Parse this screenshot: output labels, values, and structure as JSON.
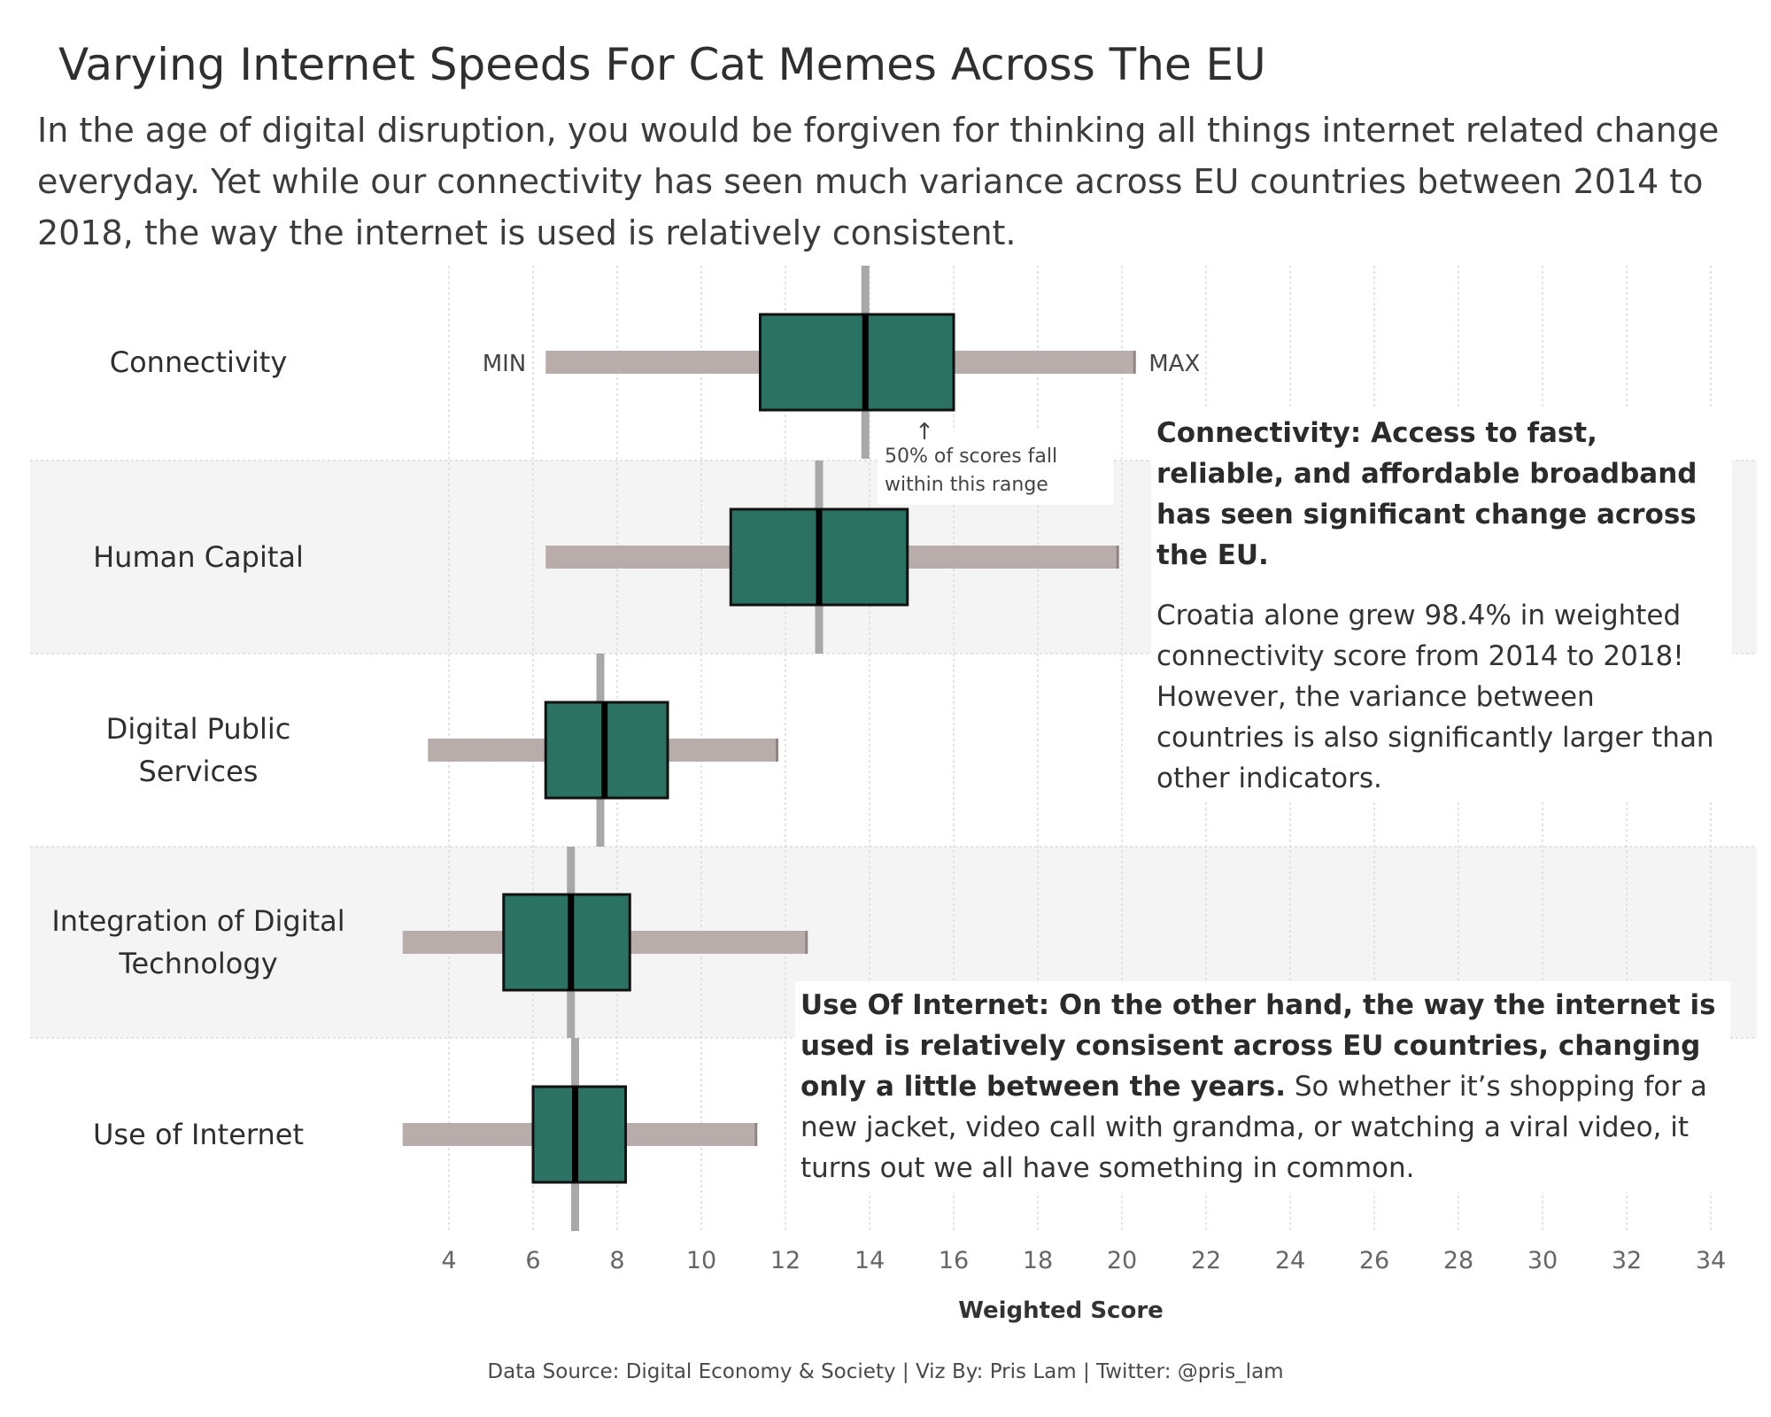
{
  "title": "Varying Internet Speeds For Cat Memes Across The EU",
  "subtitle": "In the age of digital disruption, you would be forgiven for thinking all things internet related change everyday. Yet while our connectivity has seen much variance across EU countries between 2014 to 2018, the way the internet is used is relatively consistent.",
  "colors": {
    "box_fill": "#2b7263",
    "whisker": "#b8adaa",
    "median_line": "#000000",
    "reference_line": "#a8a8a8",
    "band": "#f4f4f4",
    "grid": "#dcdcdc"
  },
  "chart_data": {
    "type": "boxplot",
    "orientation": "horizontal",
    "categories": [
      "Connectivity",
      "Human Capital",
      "Digital Public Services",
      "Integration of Digital Technology",
      "Use of Internet"
    ],
    "category_labels": [
      [
        "Connectivity"
      ],
      [
        "Human Capital"
      ],
      [
        "Digital Public",
        "Services"
      ],
      [
        "Integration of Digital",
        "Technology"
      ],
      [
        "Use of Internet"
      ]
    ],
    "boxes": [
      {
        "category": "Connectivity",
        "min": 6.3,
        "q1": 11.4,
        "median": 13.9,
        "q3": 16.0,
        "max": 20.3,
        "reference": 13.9
      },
      {
        "category": "Human Capital",
        "min": 6.3,
        "q1": 10.7,
        "median": 12.8,
        "q3": 14.9,
        "max": 19.9,
        "reference": 12.8
      },
      {
        "category": "Digital Public Services",
        "min": 3.5,
        "q1": 6.3,
        "median": 7.7,
        "q3": 9.2,
        "max": 11.8,
        "reference": 7.6
      },
      {
        "category": "Integration of Digital Technology",
        "min": 2.9,
        "q1": 5.3,
        "median": 6.9,
        "q3": 8.3,
        "max": 12.5,
        "reference": 6.9
      },
      {
        "category": "Use of Internet",
        "min": 2.9,
        "q1": 6.0,
        "median": 7.0,
        "q3": 8.2,
        "max": 11.3,
        "reference": 7.0
      }
    ],
    "xlim": [
      3,
      34.5
    ],
    "xticks": [
      4,
      6,
      8,
      10,
      12,
      14,
      16,
      18,
      20,
      22,
      24,
      26,
      28,
      30,
      32,
      34
    ],
    "xlabel": "Weighted Score",
    "ylabel": "",
    "grid": true,
    "annotations": {
      "min_label": "MIN",
      "max_label": "MAX",
      "range_note": [
        "50% of scores fall",
        "within this range"
      ],
      "range_arrow": "↑"
    }
  },
  "callouts": {
    "connectivity_bold": "Connectivity: Access to fast, reliable, and affordable broadband has seen significant change across the EU.",
    "connectivity_body": "Croatia alone grew 98.4% in weighted connectivity score from 2014 to 2018! However, the variance between countries is also significantly larger than other indicators.",
    "internet_bold": "Use Of Internet: On the other hand, the way the internet is used is relatively consisent across EU countries, changing only a little between the years.",
    "internet_body": " So whether it’s shopping for a new jacket, video call with grandma, or watching a viral video, it turns out we all have something in common."
  },
  "footer": "Data Source: Digital Economy & Society | Viz By: Pris Lam | Twitter: @pris_lam"
}
